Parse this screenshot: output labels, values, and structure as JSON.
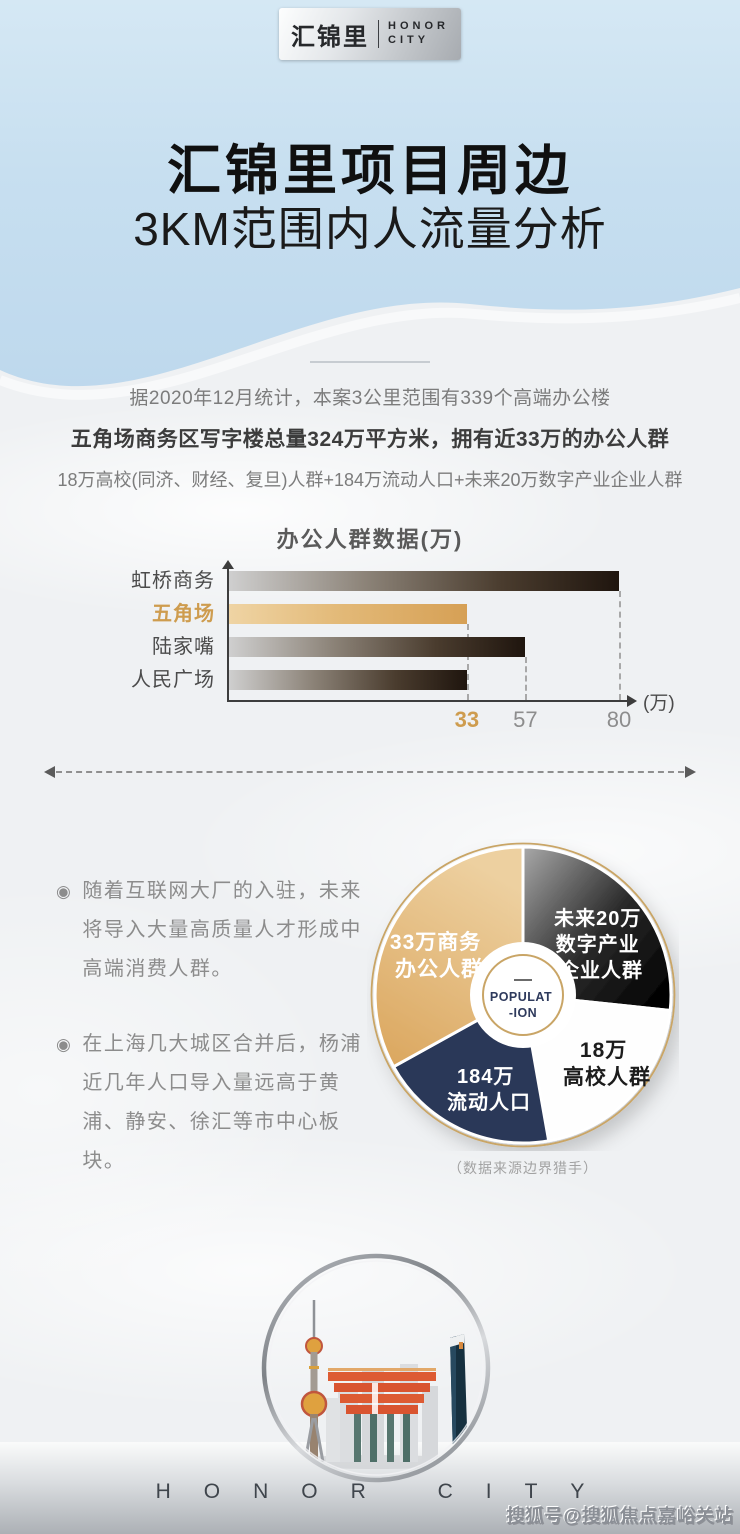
{
  "colors": {
    "accent_gold": "#CE9C4E",
    "navy": "#2C3858",
    "bar_dark_end": "#1F150E",
    "sky_blue": "#C7DFF0",
    "background": "#EFF1F3"
  },
  "logo": {
    "cn": "汇锦里",
    "en_top": "HONOR",
    "en_bottom": "CITY"
  },
  "title": {
    "line1": "汇锦里项目周边",
    "line2": "3KM范围内人流量分析"
  },
  "intro": {
    "line1": "据2020年12月统计，本案3公里范围有339个高端办公楼",
    "line2": "五角场商务区写字楼总量324万平方米，拥有近33万的办公人群",
    "line3": "18万高校(同济、财经、复旦)人群+184万流动人口+未来20万数字产业企业人群"
  },
  "chart_data": [
    {
      "type": "bar",
      "title": "办公人群数据(万)",
      "orientation": "horizontal",
      "categories": [
        "虹桥商务",
        "五角场",
        "陆家嘴",
        "人民广场"
      ],
      "values": [
        80,
        33,
        57,
        33
      ],
      "unit": "万",
      "xlim": [
        0,
        80
      ],
      "xticks": [
        33,
        57,
        80
      ],
      "axis_unit_label": "(万)",
      "highlight_category": "五角场",
      "highlight_index": 1,
      "bar_display_pct": [
        100,
        61,
        76,
        61
      ],
      "tick_display_pct": [
        61,
        76,
        100
      ],
      "grid": "dashed-guides-at-ticks",
      "legend": "none"
    },
    {
      "type": "pie",
      "style": "donut",
      "center_lines": [
        "POPULAT",
        "-ION"
      ],
      "segments": [
        {
          "label": "33万商务办公人群",
          "value": 33,
          "unit": "万",
          "lines": [
            "33万商务",
            "办公人群"
          ],
          "color_key": "gold"
        },
        {
          "label": "未来20万数字产业企业人群",
          "value": 20,
          "unit": "万",
          "lines": [
            "未来20万",
            "数字产业",
            "企业人群"
          ],
          "color_key": "dark-gradient"
        },
        {
          "label": "18万高校人群",
          "value": 18,
          "unit": "万",
          "lines": [
            "18万",
            "高校人群"
          ],
          "color_key": "white"
        },
        {
          "label": "184万流动人口",
          "value": 184,
          "unit": "万",
          "lines": [
            "184万",
            "流动人口"
          ],
          "color_key": "navy"
        }
      ],
      "source_note": "（数据来源边界猎手）"
    }
  ],
  "bullets": [
    "随着互联网大厂的入驻，未来将导入大量高质量人才形成中高端消费人群。",
    "在上海几大城区合并后，杨浦近几年人口导入量远高于黄浦、静安、徐汇等市中心板块。"
  ],
  "footer": {
    "brand": "HONOR CITY",
    "watermark": "搜狐号@搜狐焦点嘉峪关站"
  }
}
